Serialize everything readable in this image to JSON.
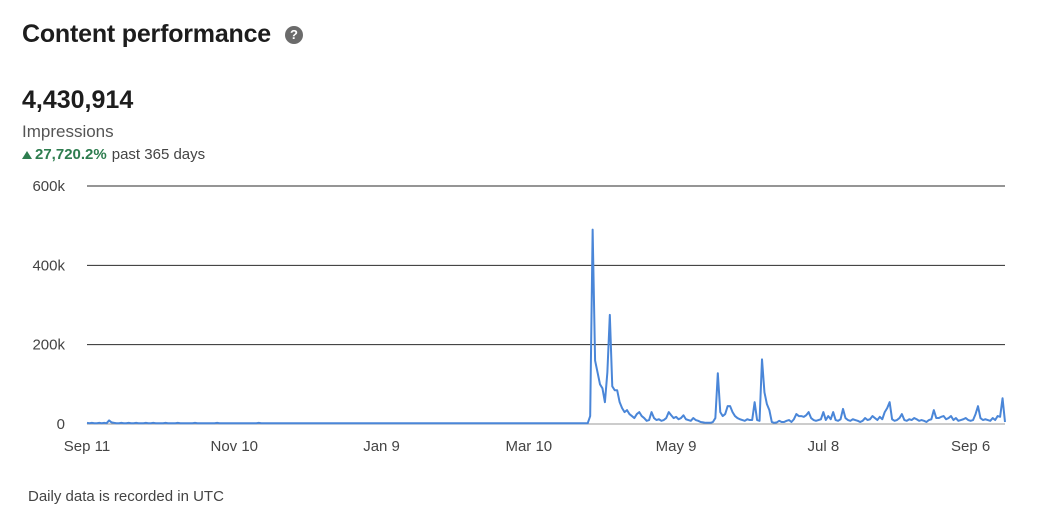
{
  "header": {
    "title": "Content performance",
    "help_glyph": "?"
  },
  "metric": {
    "value": "4,430,914",
    "label": "Impressions",
    "change": "27,720.2%",
    "period": "past 365 days",
    "change_color": "#2e7d4f"
  },
  "footnote": "Daily data is recorded in UTC",
  "chart_data": {
    "type": "line",
    "title": "",
    "xlabel": "",
    "ylabel": "Impressions",
    "ylim": [
      0,
      600000
    ],
    "yticks": [
      {
        "label": "0",
        "value": 0
      },
      {
        "label": "200k",
        "value": 200000
      },
      {
        "label": "400k",
        "value": 400000
      },
      {
        "label": "600k",
        "value": 600000
      }
    ],
    "xticks": [
      {
        "label": "Sep 11",
        "day": 0
      },
      {
        "label": "Nov 10",
        "day": 60
      },
      {
        "label": "Jan 9",
        "day": 120
      },
      {
        "label": "Mar 10",
        "day": 180
      },
      {
        "label": "May 9",
        "day": 240
      },
      {
        "label": "Jul 8",
        "day": 300
      },
      {
        "label": "Sep 6",
        "day": 360
      }
    ],
    "grid": true,
    "line_color": "#4a86d8",
    "series": [
      {
        "values": [
          3000,
          2000,
          3000,
          2000,
          2000,
          3000,
          2000,
          3000,
          2000,
          9000,
          4000,
          3000,
          2000,
          2000,
          3000,
          2000,
          2000,
          3000,
          2000,
          2000,
          3000,
          2000,
          2000,
          2000,
          3000,
          2000,
          2000,
          3000,
          2000,
          2000,
          2000,
          2000,
          3000,
          2000,
          2000,
          2000,
          2000,
          3000,
          2000,
          2000,
          2000,
          2000,
          2000,
          2000,
          3000,
          2000,
          2000,
          2000,
          2000,
          2000,
          2000,
          2000,
          2000,
          3000,
          2000,
          2000,
          2000,
          2000,
          2000,
          2000,
          2000,
          2000,
          2000,
          2000,
          2000,
          2000,
          2000,
          2000,
          2000,
          2000,
          3000,
          2000,
          2000,
          2000,
          2000,
          2000,
          2000,
          2000,
          2000,
          2000,
          2000,
          2000,
          2000,
          2000,
          2000,
          2000,
          2000,
          2000,
          2000,
          2000,
          2000,
          2000,
          2000,
          2000,
          2000,
          2000,
          2000,
          2000,
          2000,
          2000,
          2000,
          2000,
          2000,
          2000,
          2000,
          2000,
          2000,
          2000,
          2000,
          2000,
          2000,
          2000,
          2000,
          2000,
          2000,
          2000,
          2000,
          2000,
          2000,
          2000,
          2000,
          2000,
          2000,
          2000,
          2000,
          2000,
          2000,
          2000,
          2000,
          2000,
          2000,
          2000,
          2000,
          2000,
          2000,
          2000,
          2000,
          2000,
          2000,
          2000,
          2000,
          2000,
          2000,
          2000,
          2000,
          2000,
          2000,
          2000,
          2000,
          2000,
          2000,
          2000,
          2000,
          2000,
          2000,
          2000,
          2000,
          2000,
          2000,
          2000,
          2000,
          2000,
          2000,
          2000,
          2000,
          2000,
          2000,
          2000,
          2000,
          2000,
          2000,
          2000,
          2000,
          2000,
          2000,
          2000,
          2000,
          2000,
          2000,
          2000,
          2000,
          2000,
          2000,
          2000,
          2000,
          2000,
          2000,
          2000,
          2000,
          2000,
          2000,
          2000,
          2000,
          2000,
          2000,
          2000,
          2000,
          2000,
          2000,
          2000,
          2000,
          2000,
          2000,
          2000,
          2000,
          20000,
          490000,
          160000,
          130000,
          100000,
          90000,
          55000,
          130000,
          275000,
          95000,
          85000,
          85000,
          55000,
          40000,
          30000,
          35000,
          25000,
          20000,
          15000,
          25000,
          30000,
          20000,
          15000,
          8000,
          10000,
          30000,
          15000,
          10000,
          12000,
          8000,
          10000,
          15000,
          30000,
          22000,
          15000,
          18000,
          12000,
          15000,
          22000,
          12000,
          10000,
          8000,
          15000,
          10000,
          8000,
          5000,
          4000,
          3000,
          3000,
          3000,
          5000,
          15000,
          128000,
          30000,
          20000,
          25000,
          45000,
          45000,
          30000,
          20000,
          15000,
          12000,
          10000,
          8000,
          12000,
          10000,
          10000,
          55000,
          10000,
          8000,
          163000,
          80000,
          50000,
          35000,
          5000,
          3000,
          4000,
          8000,
          5000,
          5000,
          8000,
          10000,
          5000,
          12000,
          25000,
          20000,
          20000,
          18000,
          22000,
          30000,
          15000,
          10000,
          8000,
          10000,
          12000,
          30000,
          10000,
          20000,
          12000,
          30000,
          10000,
          8000,
          12000,
          38000,
          15000,
          10000,
          8000,
          12000,
          10000,
          8000,
          5000,
          8000,
          15000,
          10000,
          12000,
          20000,
          15000,
          10000,
          18000,
          12000,
          30000,
          40000,
          55000,
          12000,
          8000,
          10000,
          15000,
          25000,
          10000,
          8000,
          12000,
          10000,
          15000,
          12000,
          8000,
          10000,
          8000,
          5000,
          10000,
          12000,
          35000,
          15000,
          15000,
          18000,
          20000,
          12000,
          15000,
          20000,
          10000,
          15000,
          8000,
          10000,
          12000,
          15000,
          10000,
          8000,
          10000,
          25000,
          45000,
          15000,
          10000,
          12000,
          10000,
          8000,
          15000,
          10000,
          20000,
          18000,
          65000,
          5000
        ]
      }
    ]
  }
}
